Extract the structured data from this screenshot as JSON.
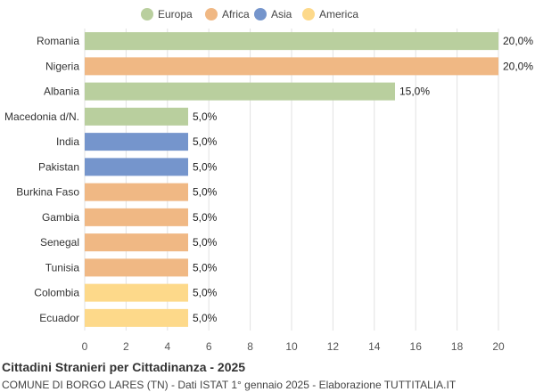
{
  "chart_data": {
    "type": "bar",
    "orientation": "horizontal",
    "title": "Cittadini Stranieri per Cittadinanza - 2025",
    "subtitle": "COMUNE DI BORGO LARES (TN) - Dati ISTAT 1° gennaio 2025 - Elaborazione TUTTITALIA.IT",
    "legend": [
      {
        "name": "Europa",
        "color": "#b9cf9e"
      },
      {
        "name": "Africa",
        "color": "#f0b884"
      },
      {
        "name": "Asia",
        "color": "#7595cc"
      },
      {
        "name": "America",
        "color": "#fdd98a"
      }
    ],
    "legend_position": "top-center",
    "categories": [
      "Romania",
      "Nigeria",
      "Albania",
      "Macedonia d/N.",
      "India",
      "Pakistan",
      "Burkina Faso",
      "Gambia",
      "Senegal",
      "Tunisia",
      "Colombia",
      "Ecuador"
    ],
    "values": [
      20,
      20,
      15,
      5,
      5,
      5,
      5,
      5,
      5,
      5,
      5,
      5
    ],
    "value_labels": [
      "20,0%",
      "20,0%",
      "15,0%",
      "5,0%",
      "5,0%",
      "5,0%",
      "5,0%",
      "5,0%",
      "5,0%",
      "5,0%",
      "5,0%",
      "5,0%"
    ],
    "groups": [
      "Europa",
      "Africa",
      "Europa",
      "Europa",
      "Asia",
      "Asia",
      "Africa",
      "Africa",
      "Africa",
      "Africa",
      "America",
      "America"
    ],
    "xlim": [
      0,
      20
    ],
    "xticks": [
      "0",
      "2",
      "4",
      "6",
      "8",
      "10",
      "12",
      "14",
      "16",
      "18",
      "20"
    ],
    "grid": true
  }
}
